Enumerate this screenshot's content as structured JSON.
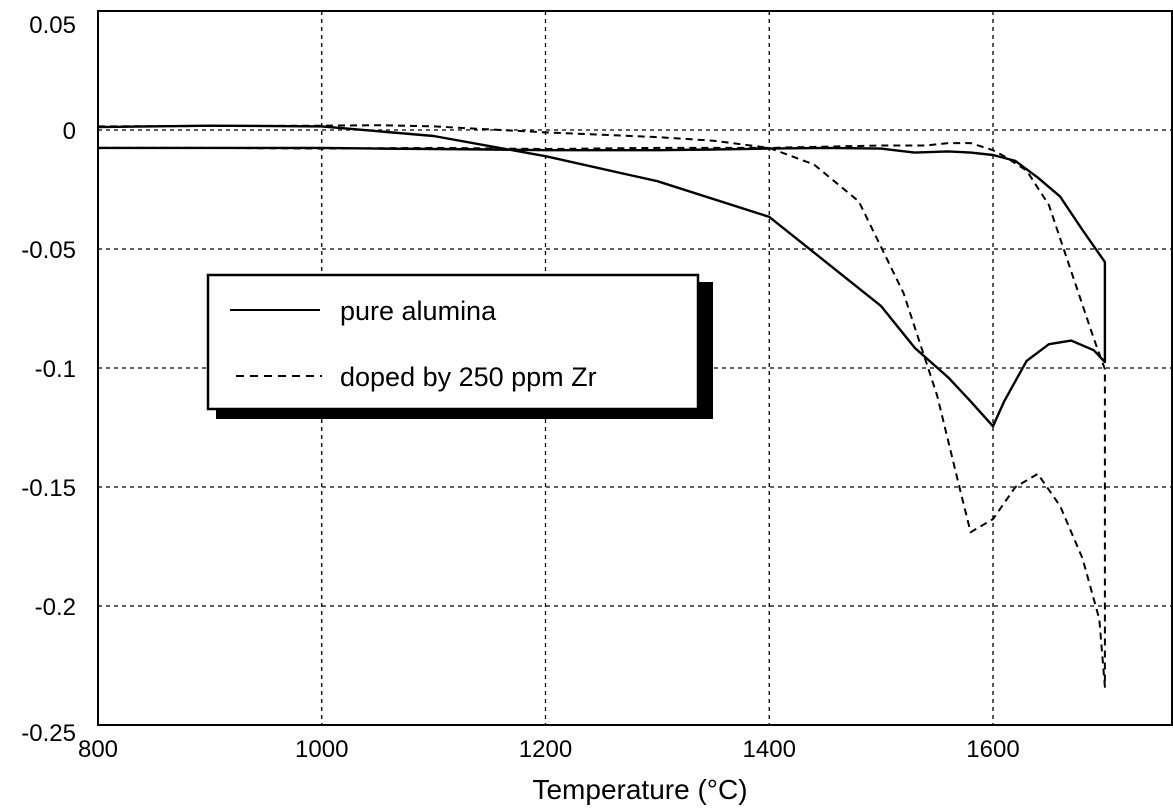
{
  "chart_data": {
    "type": "line",
    "title": "",
    "xlabel": "Temperature (°C)",
    "ylabel": "",
    "xlim": [
      800,
      1760
    ],
    "ylim": [
      -0.25,
      0.05
    ],
    "x_ticks": [
      800,
      1000,
      1200,
      1400,
      1600
    ],
    "y_ticks": [
      0.05,
      0,
      -0.05,
      -0.1,
      -0.15,
      -0.2,
      -0.25
    ],
    "x_tick_labels": [
      "800",
      "1000",
      "1200",
      "1400",
      "1600"
    ],
    "y_tick_labels": [
      "0.05",
      "0",
      "-0.05",
      "-0.1",
      "-0.15",
      "-0.2",
      "-0.25"
    ],
    "grid": true,
    "legend_position": "upper-left",
    "series": [
      {
        "name": "pure alumina",
        "style": "solid",
        "color": "#000000",
        "x": [
          800,
          900,
          1000,
          1050,
          1100,
          1150,
          1200,
          1250,
          1300,
          1350,
          1400,
          1450,
          1500,
          1530,
          1560,
          1580,
          1600,
          1620,
          1640,
          1660,
          1680,
          1700,
          1700,
          1690,
          1670,
          1650,
          1630,
          1610,
          1600,
          1580,
          1560,
          1530,
          1500,
          1400,
          1300,
          1200,
          1100,
          1000,
          900,
          800
        ],
        "y": [
          -0.0075,
          -0.0075,
          -0.0075,
          -0.0078,
          -0.008,
          -0.0082,
          -0.0085,
          -0.0085,
          -0.0085,
          -0.0082,
          -0.0078,
          -0.0075,
          -0.0078,
          -0.0095,
          -0.009,
          -0.0095,
          -0.0105,
          -0.013,
          -0.02,
          -0.028,
          -0.042,
          -0.0555,
          -0.0975,
          -0.0925,
          -0.0885,
          -0.09,
          -0.097,
          -0.114,
          -0.1245,
          -0.114,
          -0.104,
          -0.0915,
          -0.074,
          -0.0365,
          -0.0215,
          -0.011,
          -0.0025,
          0.0015,
          0.0018,
          0.0012
        ]
      },
      {
        "name": "doped by 250 ppm Zr",
        "style": "dashed",
        "color": "#000000",
        "x": [
          800,
          900,
          1000,
          1050,
          1100,
          1200,
          1300,
          1350,
          1400,
          1440,
          1480,
          1520,
          1550,
          1570,
          1580,
          1600,
          1620,
          1640,
          1660,
          1680,
          1695,
          1700,
          1700,
          1690,
          1670,
          1650,
          1630,
          1610,
          1600,
          1580,
          1560,
          1540,
          1500,
          1400,
          1300,
          1200,
          1100,
          1000,
          900,
          800
        ],
        "y": [
          0.0015,
          0.0017,
          0.0018,
          0.002,
          0.0015,
          -0.001,
          -0.003,
          -0.0045,
          -0.0075,
          -0.0145,
          -0.03,
          -0.0685,
          -0.1115,
          -0.15,
          -0.169,
          -0.1635,
          -0.15,
          -0.1445,
          -0.158,
          -0.18,
          -0.2055,
          -0.234,
          -0.1005,
          -0.0875,
          -0.0595,
          -0.0315,
          -0.017,
          -0.011,
          -0.0085,
          -0.0055,
          -0.0055,
          -0.0065,
          -0.0065,
          -0.0075,
          -0.0075,
          -0.008,
          -0.0075,
          -0.0078,
          -0.0075,
          -0.0075
        ]
      }
    ]
  }
}
